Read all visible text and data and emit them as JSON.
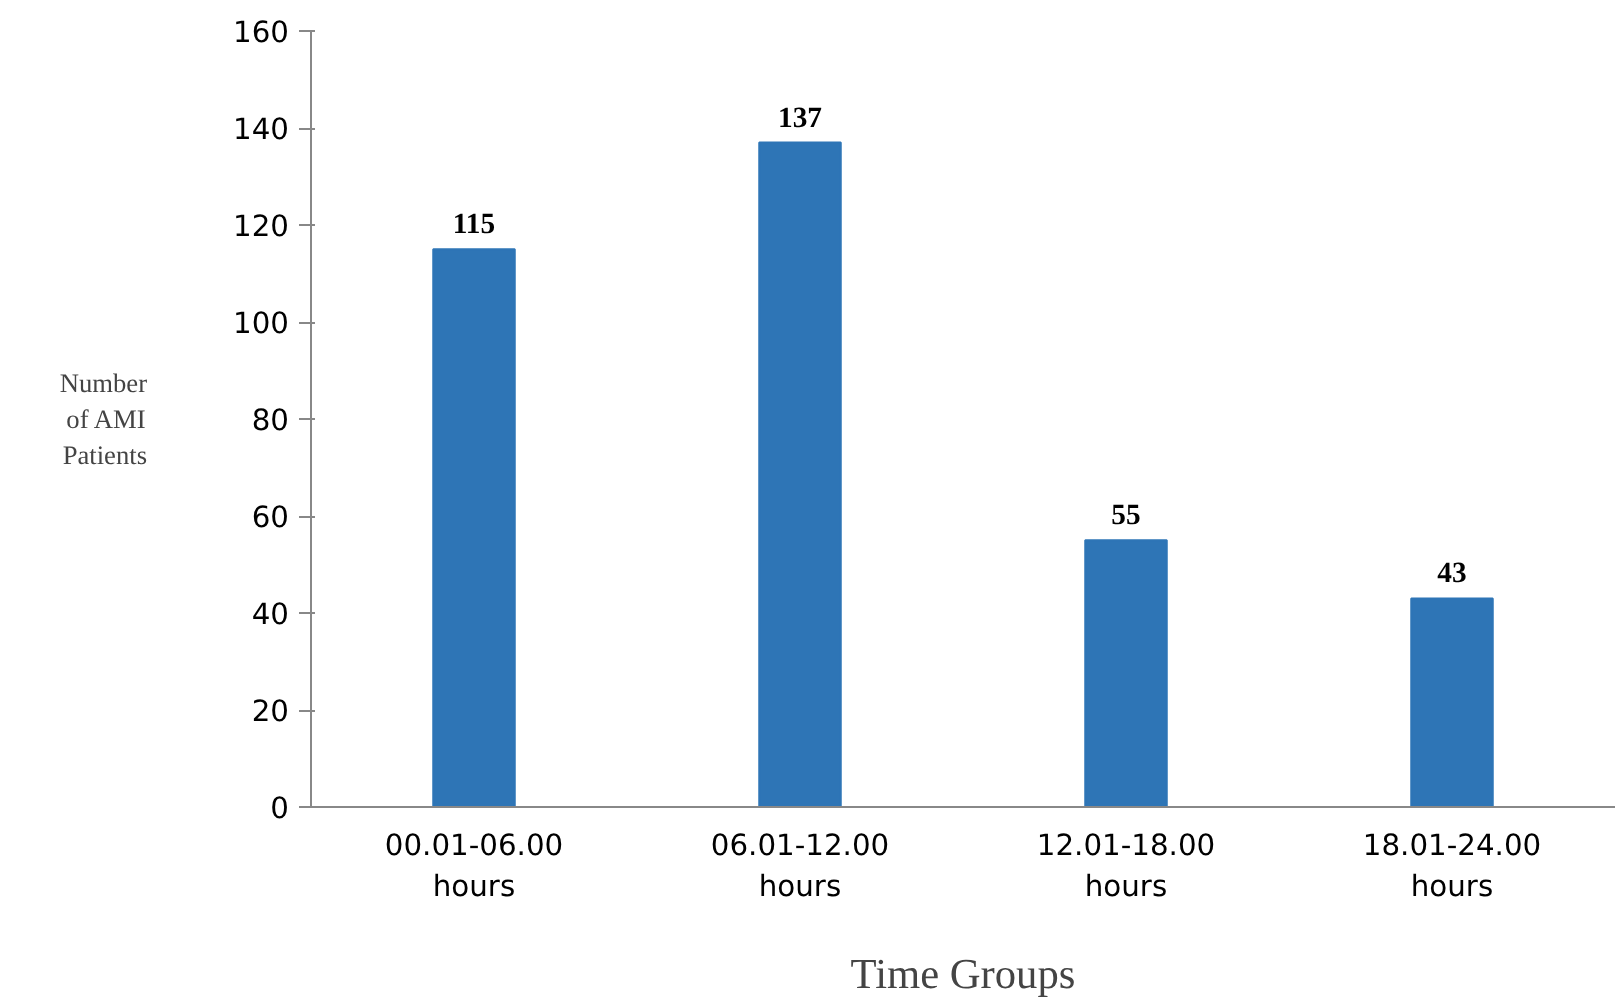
{
  "chart_data": {
    "type": "bar",
    "xlabel": "Time Groups",
    "ylabel": "Number\nof AMI\nPatients",
    "categories": [
      "00.01-06.00\nhours",
      "06.01-12.00\nhours",
      "12.01-18.00\nhours",
      "18.01-24.00\nhours"
    ],
    "values": [
      115,
      137,
      55,
      43
    ],
    "color": "#2e75b6",
    "data_labels": true,
    "ylim": [
      0,
      160
    ],
    "yticks": [
      0,
      20,
      40,
      60,
      80,
      100,
      120,
      140,
      160
    ],
    "grid": false
  }
}
